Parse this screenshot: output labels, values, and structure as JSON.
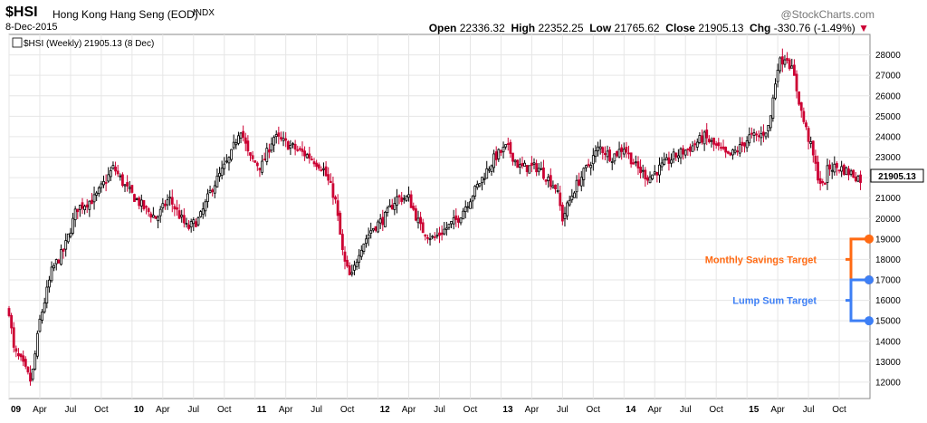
{
  "header": {
    "symbol": "$HSI",
    "description": "Hong Kong Hang Seng (EOD)",
    "exchange": "INDX",
    "date": "8-Dec-2015",
    "brand": "@StockCharts.com",
    "open_label": "Open",
    "open": "22336.32",
    "high_label": "High",
    "high": "22352.25",
    "low_label": "Low",
    "low": "21765.62",
    "close_label": "Close",
    "close": "21905.13",
    "chg_label": "Chg",
    "chg": "-330.76 (-1.49%)"
  },
  "chart_data": {
    "type": "candlestick",
    "legend": "$HSI (Weekly) 21905.13 (8 Dec)",
    "last_value_label": "21905.13",
    "ylim": [
      11200,
      29000
    ],
    "y_ticks": [
      12000,
      13000,
      14000,
      15000,
      16000,
      17000,
      18000,
      19000,
      20000,
      21000,
      22000,
      23000,
      24000,
      25000,
      26000,
      27000,
      28000
    ],
    "x_ticks": [
      {
        "label": "09",
        "t": 0,
        "major": true
      },
      {
        "label": "Apr",
        "t": 0.25
      },
      {
        "label": "Jul",
        "t": 0.5
      },
      {
        "label": "Oct",
        "t": 0.75
      },
      {
        "label": "10",
        "t": 1,
        "major": true
      },
      {
        "label": "Apr",
        "t": 1.25
      },
      {
        "label": "Jul",
        "t": 1.5
      },
      {
        "label": "Oct",
        "t": 1.75
      },
      {
        "label": "11",
        "t": 2,
        "major": true
      },
      {
        "label": "Apr",
        "t": 2.25
      },
      {
        "label": "Jul",
        "t": 2.5
      },
      {
        "label": "Oct",
        "t": 2.75
      },
      {
        "label": "12",
        "t": 3,
        "major": true
      },
      {
        "label": "Apr",
        "t": 3.25
      },
      {
        "label": "Jul",
        "t": 3.5
      },
      {
        "label": "Oct",
        "t": 3.75
      },
      {
        "label": "13",
        "t": 4,
        "major": true
      },
      {
        "label": "Apr",
        "t": 4.25
      },
      {
        "label": "Jul",
        "t": 4.5
      },
      {
        "label": "Oct",
        "t": 4.75
      },
      {
        "label": "14",
        "t": 5,
        "major": true
      },
      {
        "label": "Apr",
        "t": 5.25
      },
      {
        "label": "Jul",
        "t": 5.5
      },
      {
        "label": "Oct",
        "t": 5.75
      },
      {
        "label": "15",
        "t": 6,
        "major": true
      },
      {
        "label": "Apr",
        "t": 6.25
      },
      {
        "label": "Jul",
        "t": 6.5
      },
      {
        "label": "Oct",
        "t": 6.75
      }
    ],
    "price_path": [
      [
        0.0,
        15500
      ],
      [
        0.04,
        13500
      ],
      [
        0.1,
        13000
      ],
      [
        0.18,
        12000
      ],
      [
        0.25,
        15000
      ],
      [
        0.35,
        17500
      ],
      [
        0.45,
        18500
      ],
      [
        0.55,
        20500
      ],
      [
        0.7,
        21000
      ],
      [
        0.85,
        22500
      ],
      [
        0.95,
        21500
      ],
      [
        1.1,
        20500
      ],
      [
        1.2,
        20000
      ],
      [
        1.3,
        21000
      ],
      [
        1.45,
        19500
      ],
      [
        1.55,
        20000
      ],
      [
        1.65,
        21500
      ],
      [
        1.8,
        23000
      ],
      [
        1.88,
        24500
      ],
      [
        1.95,
        23000
      ],
      [
        2.05,
        22500
      ],
      [
        2.15,
        24000
      ],
      [
        2.3,
        23500
      ],
      [
        2.45,
        23000
      ],
      [
        2.55,
        22500
      ],
      [
        2.65,
        21000
      ],
      [
        2.72,
        18000
      ],
      [
        2.78,
        17000
      ],
      [
        2.85,
        18500
      ],
      [
        2.95,
        19500
      ],
      [
        3.05,
        20000
      ],
      [
        3.15,
        21000
      ],
      [
        3.25,
        21000
      ],
      [
        3.35,
        19500
      ],
      [
        3.45,
        19000
      ],
      [
        3.55,
        19500
      ],
      [
        3.65,
        20000
      ],
      [
        3.75,
        21000
      ],
      [
        3.85,
        22000
      ],
      [
        3.95,
        23000
      ],
      [
        4.05,
        23500
      ],
      [
        4.15,
        22500
      ],
      [
        4.3,
        22500
      ],
      [
        4.45,
        21500
      ],
      [
        4.5,
        20000
      ],
      [
        4.6,
        21500
      ],
      [
        4.7,
        22500
      ],
      [
        4.8,
        23500
      ],
      [
        4.9,
        23000
      ],
      [
        5.0,
        23500
      ],
      [
        5.1,
        22500
      ],
      [
        5.2,
        22000
      ],
      [
        5.3,
        22500
      ],
      [
        5.4,
        23000
      ],
      [
        5.55,
        23500
      ],
      [
        5.65,
        24000
      ],
      [
        5.75,
        23500
      ],
      [
        5.85,
        23000
      ],
      [
        5.95,
        23500
      ],
      [
        6.02,
        24000
      ],
      [
        6.1,
        24000
      ],
      [
        6.18,
        24500
      ],
      [
        6.25,
        27500
      ],
      [
        6.32,
        28000
      ],
      [
        6.38,
        27000
      ],
      [
        6.45,
        25000
      ],
      [
        6.52,
        23500
      ],
      [
        6.58,
        22000
      ],
      [
        6.62,
        21500
      ],
      [
        6.66,
        22500
      ],
      [
        6.75,
        22500
      ],
      [
        6.85,
        22200
      ],
      [
        6.93,
        21905
      ]
    ],
    "annotations": [
      {
        "label": "Monthly Savings Target",
        "color": "#ff6a13",
        "from": 17000,
        "to": 19000
      },
      {
        "label": "Lump Sum Target",
        "color": "#3d7ff5",
        "from": 15000,
        "to": 17000
      }
    ],
    "up_color": "#000000",
    "down_color": "#cc0033"
  }
}
